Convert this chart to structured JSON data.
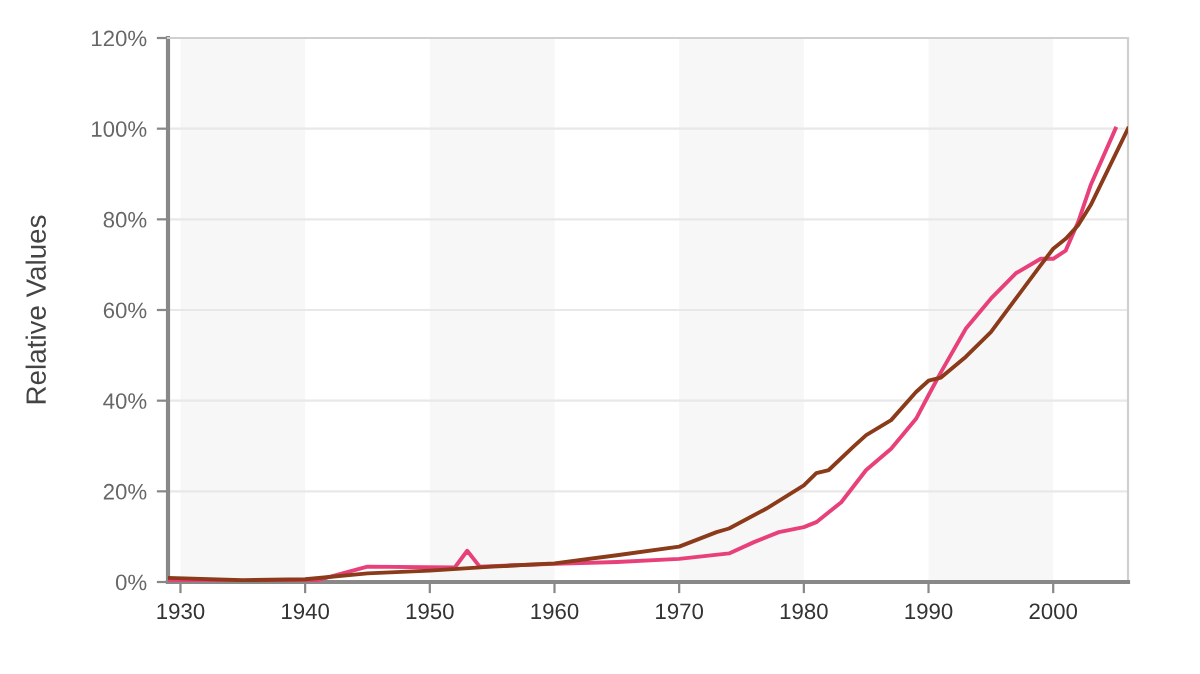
{
  "chart_data": {
    "type": "line",
    "ylabel": "Relative Values",
    "xlim": [
      1929,
      2006
    ],
    "xticks": [
      1930,
      1940,
      1950,
      1960,
      1970,
      1980,
      1990,
      2000
    ],
    "ylim": [
      0,
      120
    ],
    "yticks": [
      {
        "value": 0,
        "label": "0%"
      },
      {
        "value": 20,
        "label": "20%"
      },
      {
        "value": 40,
        "label": "40%"
      },
      {
        "value": 60,
        "label": "60%"
      },
      {
        "value": 80,
        "label": "80%"
      },
      {
        "value": 100,
        "label": "100%"
      },
      {
        "value": 120,
        "label": "120%"
      }
    ],
    "grid": "y",
    "legend": false,
    "bands": [
      {
        "axis": "x",
        "from": 1930,
        "to": 1940,
        "color": "#f7f7f7"
      },
      {
        "axis": "x",
        "from": 1950,
        "to": 1960,
        "color": "#f7f7f7"
      },
      {
        "axis": "x",
        "from": 1970,
        "to": 1980,
        "color": "#f7f7f7"
      },
      {
        "axis": "x",
        "from": 1990,
        "to": 2000,
        "color": "#f7f7f7"
      }
    ],
    "series": [
      {
        "color": "#e8407a",
        "x": [
          1929,
          1935,
          1941,
          1943,
          1945,
          1952,
          1953,
          1954,
          1960,
          1965,
          1970,
          1974,
          1976,
          1978,
          1980,
          1981,
          1983,
          1985,
          1987,
          1989,
          1990,
          1991,
          1993,
          1995,
          1997,
          1999,
          2000,
          2001,
          2002,
          2003,
          2005
        ],
        "values": [
          0.4,
          0.2,
          0.4,
          1.9,
          3.4,
          3.2,
          6.9,
          3.4,
          4,
          4.4,
          5.1,
          6.3,
          8.8,
          11,
          12.1,
          13.2,
          17.6,
          24.7,
          29.4,
          36,
          41.2,
          46.3,
          55.9,
          62.5,
          68.1,
          71.3,
          71.3,
          73.1,
          79.4,
          87.5,
          100
        ]
      },
      {
        "color": "#8b3a1a",
        "x": [
          1929,
          1935,
          1940,
          1945,
          1950,
          1955,
          1960,
          1965,
          1970,
          1973,
          1974,
          1977,
          1980,
          1981,
          1982,
          1984,
          1985,
          1987,
          1989,
          1990,
          1991,
          1993,
          1995,
          1997,
          1999,
          2000,
          2001,
          2002,
          2003,
          2006
        ],
        "values": [
          0.9,
          0.4,
          0.6,
          1.9,
          2.5,
          3.4,
          4.1,
          5.9,
          7.8,
          11,
          11.8,
          16.2,
          21.3,
          24,
          24.7,
          29.9,
          32.4,
          35.7,
          41.9,
          44.4,
          45.1,
          49.7,
          55.1,
          62.5,
          69.9,
          73.5,
          75.7,
          78.7,
          83.1,
          100
        ]
      }
    ]
  }
}
